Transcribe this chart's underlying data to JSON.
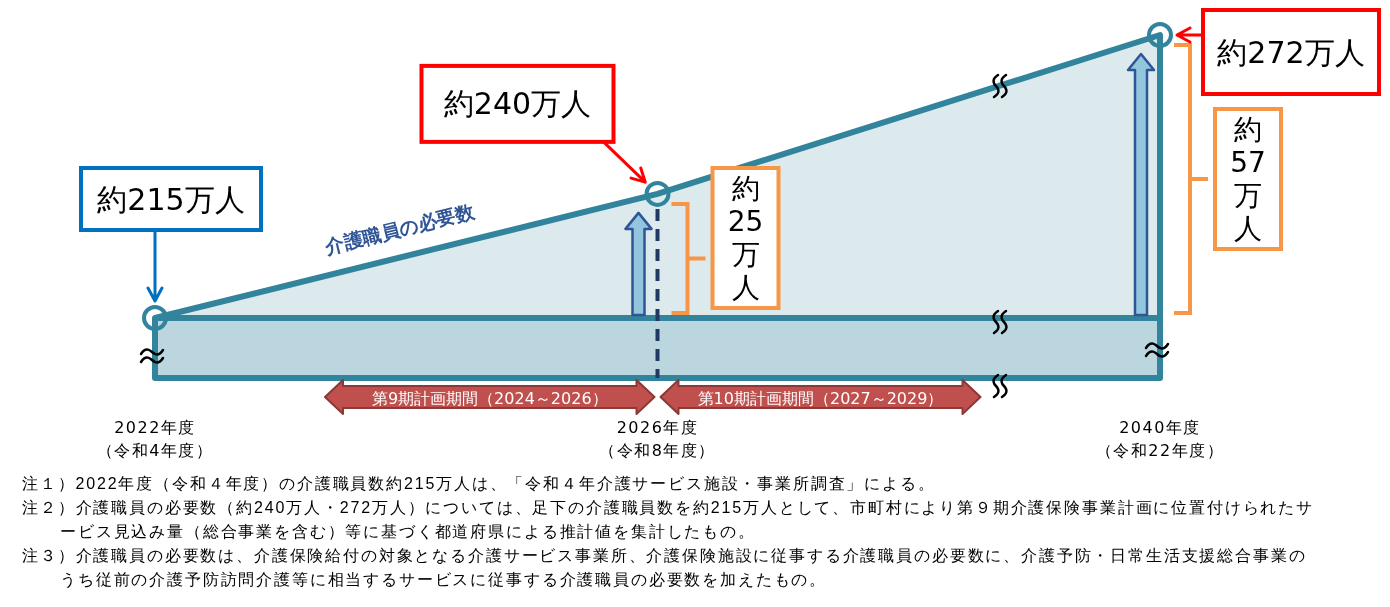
{
  "chart_data": {
    "type": "area",
    "categories": [
      "2022年度（令和4年度）",
      "2026年度（令和8年度）",
      "2040年度（令和22年度）"
    ],
    "series": [
      {
        "name": "介護職員の必要数",
        "color": "#31849b",
        "values": [
          215,
          240,
          272
        ],
        "value_labels": [
          "約215万人",
          "約240万人",
          "約272万人"
        ]
      }
    ],
    "marker": "circle",
    "tick_labels": "x",
    "ref_lines": [
      {
        "axis": "y",
        "value": 215,
        "color": "#31849b"
      },
      {
        "axis": "x",
        "value": "2026年度（令和8年度）",
        "color": "#1f3864",
        "line_style": "dashed"
      }
    ],
    "annotations": [
      "第9期計画期間（2024～2026）",
      "第10期計画期間（2027～2029）",
      {
        "text": "約25万人",
        "x": "2026年度（令和8年度）"
      },
      {
        "text": "約57万人",
        "x": "2040年度（令和22年度）"
      },
      "注１）2022年度（令和４年度）の介護職員数約215万人は、「令和４年介護サービス施設・事業所調査」による。",
      "注２）介護職員の必要数（約240万人・272万人）については、足下の介護職員数を約215万人として、市町村により第９期介護保険事業計画に位置付けられたサービス見込み量（総合事業を含む）等に基づく都道府県による推計値を集計したもの。",
      "注３）介護職員の必要数は、介護保険給付の対象となる介護サービス事業所、介護保険施設に従事する介護職員の必要数に、介護予防・日常生活支援総合事業のうち従前の介護予防訪問介護等に相当するサービスに従事する介護職員の必要数を加えたもの。"
    ]
  }
}
